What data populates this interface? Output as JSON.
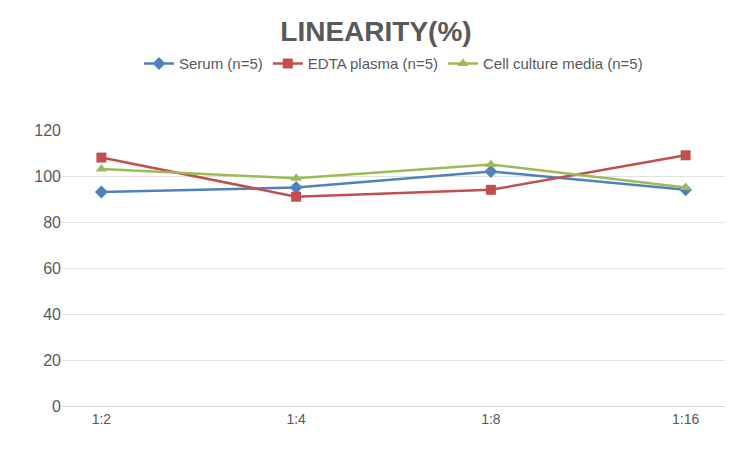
{
  "chart_data": {
    "type": "line",
    "title": "LINEARITY(%)",
    "categories": [
      "1:2",
      "1:4",
      "1:8",
      "1:16"
    ],
    "series": [
      {
        "name": "Serum (n=5)",
        "color": "#4f81bd",
        "marker": "diamond",
        "values": [
          93,
          95,
          102,
          94
        ]
      },
      {
        "name": "EDTA plasma (n=5)",
        "color": "#c0504d",
        "marker": "square",
        "values": [
          108,
          91,
          94,
          109
        ]
      },
      {
        "name": "Cell culture media (n=5)",
        "color": "#9bbb59",
        "marker": "triangle-up",
        "values": [
          103,
          99,
          105,
          95
        ]
      }
    ],
    "ylim": [
      0,
      120
    ],
    "yticks": [
      0,
      20,
      40,
      60,
      80,
      100,
      120
    ],
    "grid": true,
    "legend": "top"
  }
}
